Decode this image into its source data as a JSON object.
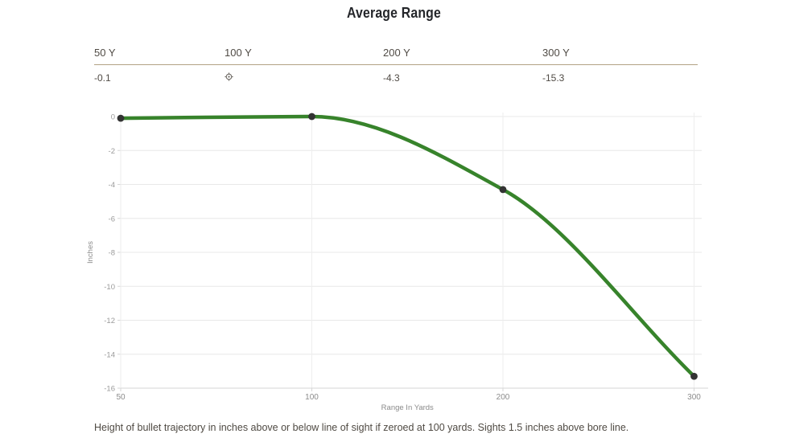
{
  "page": {
    "title": "Average Range"
  },
  "summary_table": {
    "columns": [
      {
        "label": "50 Y",
        "value": "-0.1"
      },
      {
        "label": "100 Y",
        "value": "",
        "icon": "scope-icon"
      },
      {
        "label": "200 Y",
        "value": "-4.3"
      },
      {
        "label": "300 Y",
        "value": "-15.3"
      }
    ]
  },
  "chart_data": {
    "type": "line",
    "title": "Average Range",
    "categories": [
      "50",
      "100",
      "200",
      "300"
    ],
    "values": [
      -0.1,
      0,
      -4.3,
      -15.3
    ],
    "xlabel": "Range In Yards",
    "ylabel": "Inches",
    "ylim": [
      -16,
      0
    ],
    "y_ticks": [
      0,
      -2,
      -4,
      -6,
      -8,
      -10,
      -12,
      -14,
      -16
    ],
    "grid": true,
    "legend": "none",
    "line_color": "#37832b",
    "marker_color": "#333333",
    "grid_color": "#e8e8e8",
    "axis_line_color": "#d6d6d6",
    "tick_label_color": "#9a9a9a",
    "axis_title_color": "#8a8a8a"
  },
  "caption": "Height of bullet trajectory in inches above or below line of sight if zeroed at 100 yards. Sights 1.5 inches above bore line.",
  "colors": {
    "divider": "#b2a284",
    "accent_green": "#37832b"
  }
}
